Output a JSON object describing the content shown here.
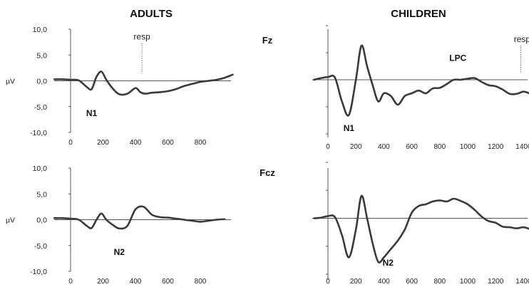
{
  "figure": {
    "col_titles": [
      "ADULTS",
      "CHILDREN"
    ],
    "electrodes": [
      "Fz",
      "Fcz"
    ],
    "y_unit": "µV",
    "y_ticks": [
      "10,0",
      "5,0",
      "0,0",
      "-5,0",
      "-10,0"
    ],
    "x_ticks_adults": [
      "0",
      "200",
      "400",
      "600",
      "800"
    ],
    "x_ticks_children": [
      "0",
      "200",
      "400",
      "600",
      "800",
      "1000",
      "1200",
      "1400"
    ]
  },
  "chart_data": [
    {
      "type": "line",
      "panel": "adults-fz",
      "title": "ADULTS",
      "electrode": "Fz",
      "ylabel": "µV",
      "ylim": [
        -10,
        10
      ],
      "xlim": [
        -100,
        1000
      ],
      "annotations": [
        {
          "text": "N1",
          "x": 130,
          "y": -6.8
        },
        {
          "text": "resp",
          "x": 440,
          "y": 8.0,
          "marker_x": 440
        }
      ],
      "series": [
        {
          "x": [
            -100,
            -50,
            0,
            50,
            100,
            130,
            160,
            190,
            220,
            260,
            300,
            350,
            400,
            430,
            460,
            500,
            550,
            600,
            650,
            700,
            750,
            800,
            850,
            900,
            950,
            1000
          ],
          "y": [
            0.3,
            0.3,
            0.2,
            0.1,
            -1.2,
            -1.6,
            0.8,
            1.8,
            0.2,
            -1.5,
            -2.6,
            -2.5,
            -1.4,
            -2.2,
            -2.5,
            -2.3,
            -2.2,
            -2.0,
            -1.6,
            -1.0,
            -0.6,
            -0.2,
            0.0,
            0.2,
            0.6,
            1.2
          ]
        }
      ]
    },
    {
      "type": "line",
      "panel": "children-fz",
      "title": "CHILDREN",
      "electrode": "Fz",
      "ylim": [
        -10,
        10
      ],
      "xlim": [
        -100,
        1450
      ],
      "annotations": [
        {
          "text": "N1",
          "x": 150,
          "y": -9.5
        },
        {
          "text": "LPC",
          "x": 930,
          "y": 3.5
        },
        {
          "text": "resp",
          "x": 1390,
          "y": 7.0,
          "marker_x": 1380
        }
      ],
      "series": [
        {
          "x": [
            -100,
            -50,
            0,
            50,
            100,
            150,
            200,
            240,
            280,
            320,
            360,
            400,
            450,
            500,
            550,
            600,
            650,
            700,
            750,
            800,
            850,
            900,
            950,
            1000,
            1050,
            1100,
            1150,
            1200,
            1250,
            1300,
            1350,
            1400,
            1450
          ],
          "y": [
            0.0,
            0.3,
            0.5,
            0.4,
            -4.0,
            -6.5,
            0.0,
            6.3,
            2.5,
            -1.0,
            -4.0,
            -2.5,
            -3.0,
            -4.6,
            -3.0,
            -2.5,
            -2.0,
            -2.5,
            -1.6,
            -1.5,
            -0.8,
            0.0,
            0.0,
            0.2,
            0.3,
            -0.4,
            -1.0,
            -1.2,
            -1.8,
            -2.6,
            -2.6,
            -2.2,
            -2.6
          ]
        }
      ]
    },
    {
      "type": "line",
      "panel": "adults-fcz",
      "electrode": "Fcz",
      "ylabel": "µV",
      "ylim": [
        -10,
        10
      ],
      "xlim": [
        -100,
        1000
      ],
      "annotations": [
        {
          "text": "N2",
          "x": 300,
          "y": -6.8
        }
      ],
      "series": [
        {
          "x": [
            -100,
            -50,
            0,
            50,
            100,
            130,
            160,
            190,
            220,
            260,
            300,
            350,
            400,
            450,
            500,
            550,
            600,
            650,
            700,
            750,
            800,
            850,
            900,
            950
          ],
          "y": [
            0.3,
            0.3,
            0.2,
            0.0,
            -1.2,
            -1.6,
            0.0,
            1.2,
            0.0,
            -1.0,
            -1.7,
            -1.2,
            2.0,
            2.5,
            1.0,
            0.5,
            0.4,
            0.2,
            0.0,
            -0.2,
            -0.4,
            -0.2,
            0.0,
            0.1
          ]
        }
      ]
    },
    {
      "type": "line",
      "panel": "children-fcz",
      "electrode": "Fcz",
      "ylim": [
        -10,
        10
      ],
      "xlim": [
        -100,
        1450
      ],
      "annotations": [
        {
          "text": "N2",
          "x": 430,
          "y": -8.5
        }
      ],
      "series": [
        {
          "x": [
            -100,
            -50,
            0,
            50,
            100,
            150,
            200,
            240,
            280,
            320,
            360,
            400,
            450,
            500,
            550,
            600,
            650,
            700,
            750,
            800,
            850,
            900,
            950,
            1000,
            1050,
            1100,
            1150,
            1200,
            1250,
            1300,
            1350,
            1400,
            1450
          ],
          "y": [
            0.0,
            0.1,
            0.4,
            0.2,
            -3.0,
            -7.0,
            -2.0,
            4.0,
            0.0,
            -4.5,
            -7.8,
            -7.0,
            -5.5,
            -4.0,
            -2.0,
            1.0,
            2.2,
            2.5,
            3.0,
            3.2,
            3.0,
            3.5,
            3.1,
            2.5,
            1.5,
            0.3,
            -0.5,
            -0.8,
            -1.5,
            -1.6,
            -1.8,
            -1.6,
            -2.0
          ]
        }
      ]
    }
  ]
}
